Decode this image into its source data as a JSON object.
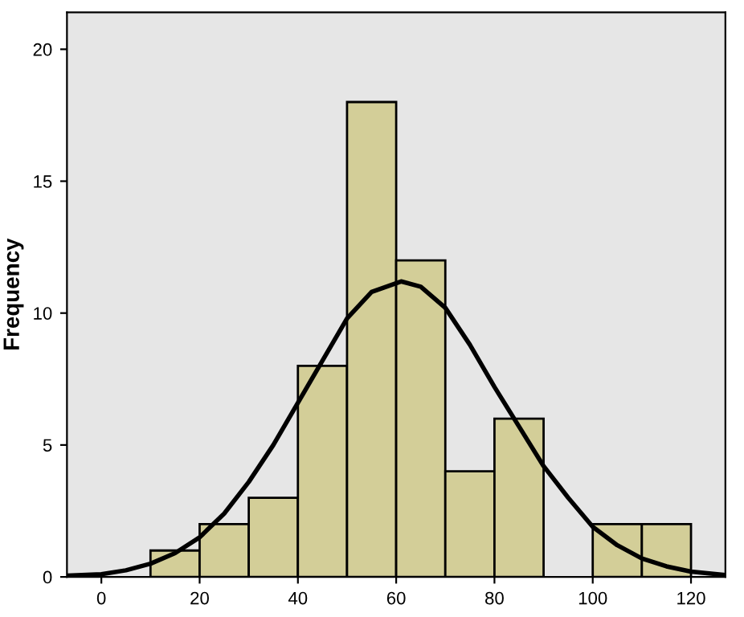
{
  "chart_data": {
    "type": "histogram",
    "ylabel": "Frequency",
    "bins": [
      10,
      20,
      30,
      40,
      50,
      60,
      70,
      80,
      90,
      100,
      110,
      120
    ],
    "values": [
      1,
      2,
      3,
      8,
      18,
      12,
      4,
      6,
      0,
      2,
      2
    ],
    "color": "#d3ce98",
    "series": [
      {
        "type": "line",
        "color": "#000000",
        "x": [
          -7,
          0,
          5,
          10,
          15,
          20,
          25,
          30,
          35,
          40,
          45,
          50,
          55,
          61,
          65,
          70,
          75,
          80,
          85,
          90,
          95,
          100,
          105,
          110,
          115,
          120,
          127
        ],
        "values": [
          0.05,
          0.1,
          0.25,
          0.5,
          0.9,
          1.5,
          2.4,
          3.6,
          5.0,
          6.6,
          8.2,
          9.8,
          10.8,
          11.2,
          11.0,
          10.2,
          8.8,
          7.2,
          5.7,
          4.2,
          3.0,
          1.9,
          1.2,
          0.7,
          0.4,
          0.2,
          0.07
        ]
      }
    ],
    "xlim": [
      -7,
      127
    ],
    "ylim": [
      0,
      21.4
    ],
    "xticks": [
      0,
      20,
      40,
      60,
      80,
      100,
      120
    ],
    "yticks": [
      0,
      5,
      10,
      15,
      20
    ],
    "grid": false
  }
}
